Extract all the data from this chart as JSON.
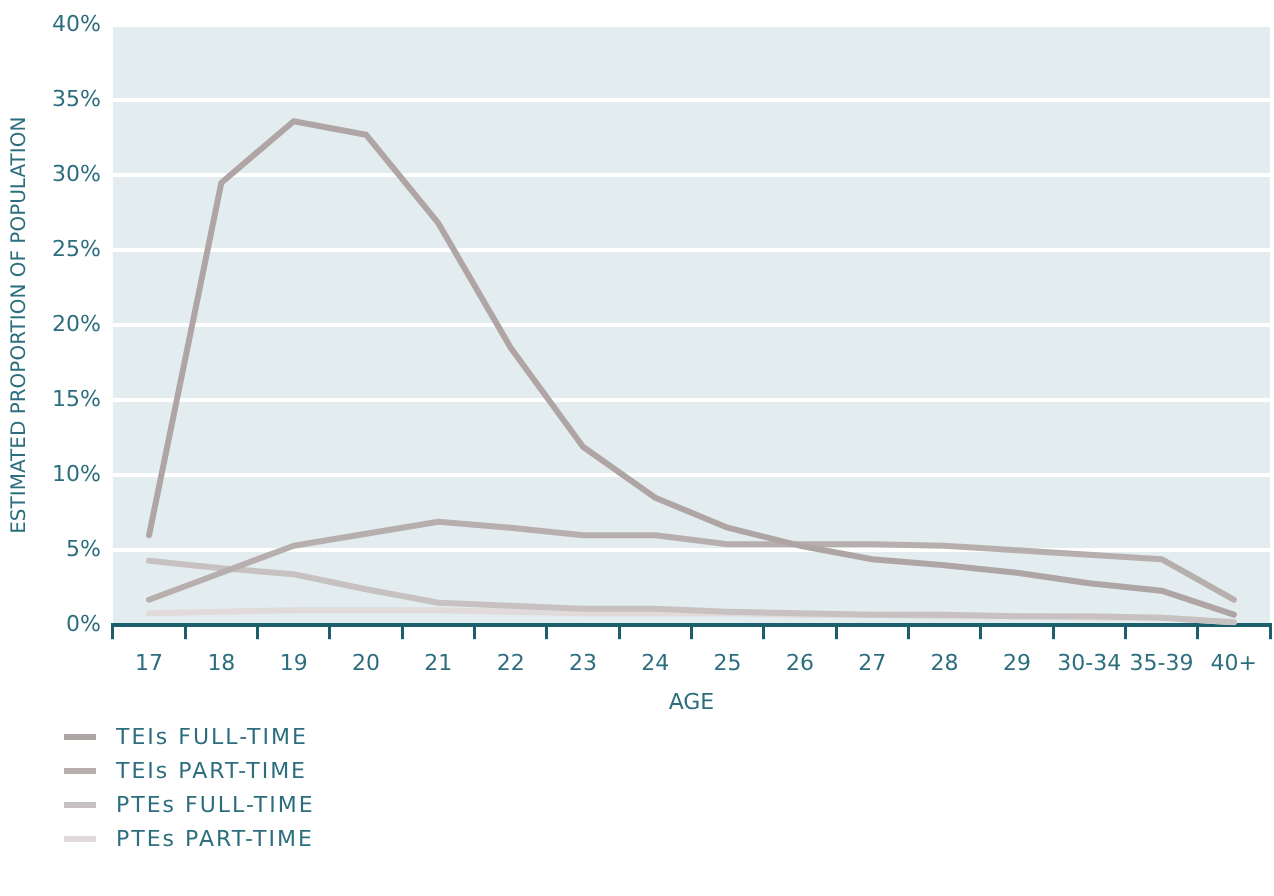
{
  "chart_data": {
    "type": "line",
    "xlabel": "AGE",
    "ylabel": "ESTIMATED PROPORTION OF POPULATION",
    "categories": [
      "17",
      "18",
      "19",
      "20",
      "21",
      "22",
      "23",
      "24",
      "25",
      "26",
      "27",
      "28",
      "29",
      "30-34",
      "35-39",
      "40+"
    ],
    "series": [
      {
        "name": "TEIs FULL-TIME",
        "color": "#b0a5a5",
        "values": [
          6.0,
          29.5,
          33.6,
          32.7,
          26.8,
          18.5,
          11.9,
          8.5,
          6.5,
          5.3,
          4.4,
          4.0,
          3.5,
          2.8,
          2.3,
          0.7
        ]
      },
      {
        "name": "TEIs PART-TIME",
        "color": "#b7aeae",
        "values": [
          1.7,
          3.5,
          5.3,
          6.1,
          6.9,
          6.5,
          6.0,
          6.0,
          5.4,
          5.4,
          5.4,
          5.3,
          5.0,
          4.7,
          4.4,
          1.7
        ]
      },
      {
        "name": "PTEs FULL-TIME",
        "color": "#c8c1c1",
        "values": [
          4.3,
          3.8,
          3.4,
          2.4,
          1.5,
          1.3,
          1.1,
          1.1,
          0.9,
          0.8,
          0.7,
          0.7,
          0.6,
          0.6,
          0.5,
          0.2
        ]
      },
      {
        "name": "PTEs PART-TIME",
        "color": "#e0dada",
        "values": [
          0.8,
          0.9,
          1.0,
          1.0,
          1.0,
          0.9,
          0.8,
          0.8,
          0.8,
          0.7,
          0.7,
          0.6,
          0.6,
          0.5,
          0.5,
          0.2
        ]
      }
    ],
    "ylim": [
      0,
      40
    ],
    "yticks": [
      {
        "value": 0,
        "label": "0%"
      },
      {
        "value": 5,
        "label": "5%"
      },
      {
        "value": 10,
        "label": "10%"
      },
      {
        "value": 15,
        "label": "15%"
      },
      {
        "value": 20,
        "label": "20%"
      },
      {
        "value": 25,
        "label": "25%"
      },
      {
        "value": 30,
        "label": "30%"
      },
      {
        "value": 35,
        "label": "35%"
      },
      {
        "value": 40,
        "label": "40%"
      }
    ],
    "grid": "y",
    "legend": "bottom left",
    "marker": "none",
    "line_style": "solid"
  }
}
